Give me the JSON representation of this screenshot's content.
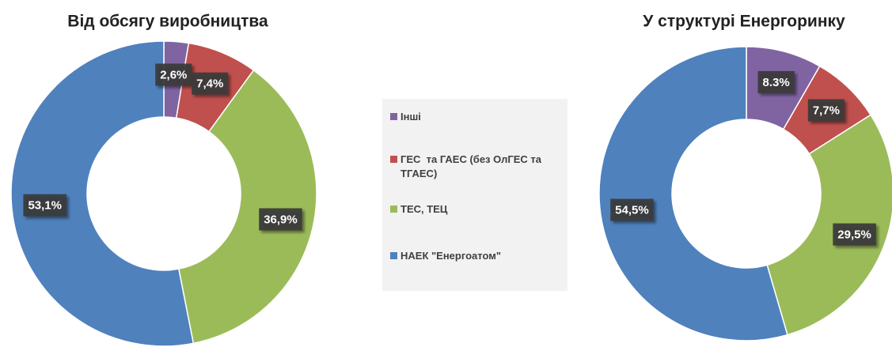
{
  "legend": {
    "labels": [
      "Інші",
      "ГЕС  та ГАЕС (без ОлГЕС та ТГАЕС)",
      "ТЕС, ТЕЦ",
      "НАЕК \"Енергоатом\""
    ],
    "colors": [
      "#8064a2",
      "#c0504d",
      "#9bbb59",
      "#4f81bd"
    ]
  },
  "chart_data": [
    {
      "type": "donut",
      "title": "Від обсягу виробництва",
      "values": [
        2.6,
        7.4,
        36.9,
        53.1
      ],
      "value_labels": [
        "2,6%",
        "7,4%",
        "36,9%",
        "53,1%"
      ]
    },
    {
      "type": "donut",
      "title": "У структурі Енергоринку",
      "values": [
        8.3,
        7.7,
        29.5,
        54.5
      ],
      "value_labels": [
        "8.3%",
        "7,7%",
        "29,5%",
        "54,5%"
      ]
    }
  ]
}
